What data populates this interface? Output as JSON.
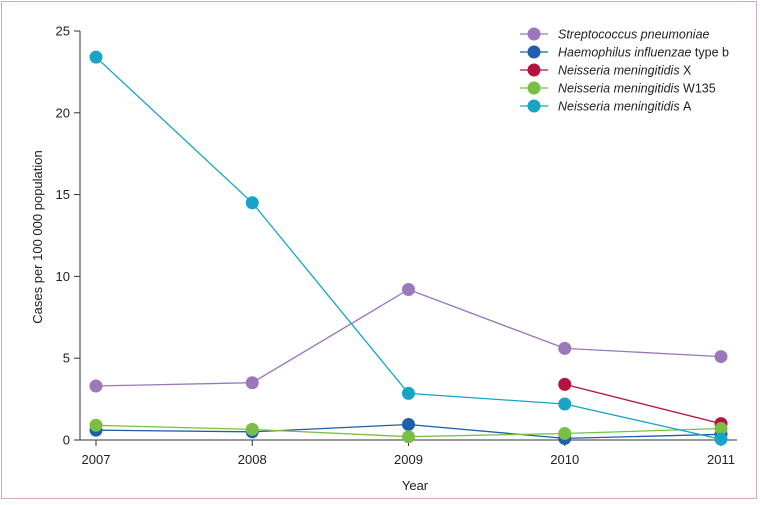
{
  "chart_data": {
    "type": "line",
    "xlabel": "Year",
    "ylabel": "Cases per 100 000 population",
    "x": [
      2007,
      2008,
      2009,
      2010,
      2011
    ],
    "ylim": [
      0,
      25
    ],
    "yticks": [
      0,
      5,
      10,
      15,
      20,
      25
    ],
    "grid": false,
    "legend_position": "top-right",
    "series": [
      {
        "name_italic": "Streptococcus pneumoniae",
        "name_suffix": "",
        "color": "#9b78bc",
        "points": [
          [
            2007,
            3.3
          ],
          [
            2008,
            3.5
          ],
          [
            2009,
            9.2
          ],
          [
            2010,
            5.6
          ],
          [
            2011,
            5.1
          ]
        ]
      },
      {
        "name_italic": "Haemophilus influenzae",
        "name_suffix": " type b",
        "color": "#1f5ea8",
        "points": [
          [
            2007,
            0.6
          ],
          [
            2008,
            0.5
          ],
          [
            2009,
            0.95
          ],
          [
            2010,
            0.1
          ],
          [
            2011,
            0.35
          ]
        ]
      },
      {
        "name_italic": "Neisseria meningitidis",
        "name_suffix": " X",
        "color": "#b5123f",
        "points": [
          [
            2010,
            3.4
          ],
          [
            2011,
            1.0
          ]
        ]
      },
      {
        "name_italic": "Neisseria meningitidis",
        "name_suffix": " W135",
        "color": "#79bf44",
        "points": [
          [
            2007,
            0.9
          ],
          [
            2008,
            0.65
          ],
          [
            2009,
            0.2
          ],
          [
            2010,
            0.4
          ],
          [
            2011,
            0.7
          ]
        ]
      },
      {
        "name_italic": "Neisseria meningitidis",
        "name_suffix": " A",
        "color": "#17a4c6",
        "points": [
          [
            2007,
            23.4
          ],
          [
            2008,
            14.5
          ],
          [
            2009,
            2.85
          ],
          [
            2010,
            2.2
          ],
          [
            2011,
            0.05
          ]
        ]
      }
    ]
  }
}
